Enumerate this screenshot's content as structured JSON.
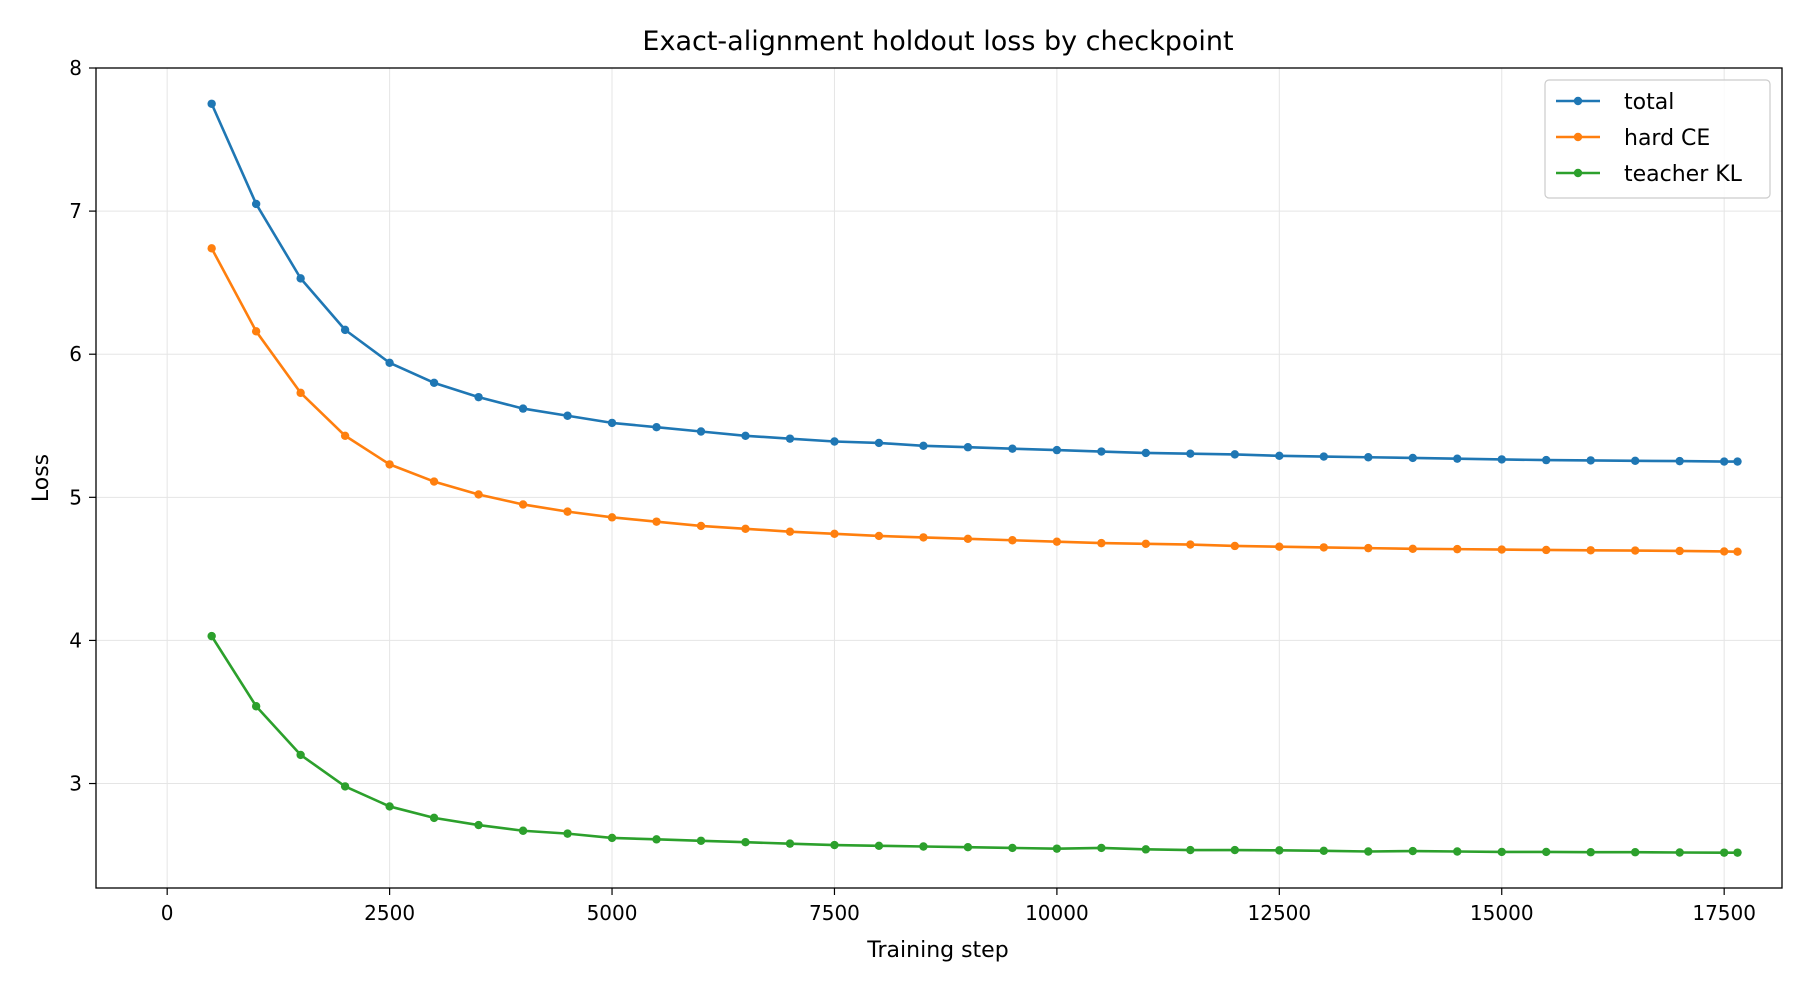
{
  "chart_data": {
    "type": "line",
    "title": "Exact-alignment holdout loss by checkpoint",
    "xlabel": "Training step",
    "ylabel": "Loss",
    "xlim": [
      -800,
      18150
    ],
    "ylim": [
      2.27,
      8.0
    ],
    "xticks": [
      0,
      2500,
      5000,
      7500,
      10000,
      12500,
      15000,
      17500
    ],
    "yticks": [
      3,
      4,
      5,
      6,
      7,
      8
    ],
    "grid": true,
    "legend_position": "upper-right",
    "x": [
      500,
      1000,
      1500,
      2000,
      2500,
      3000,
      3500,
      4000,
      4500,
      5000,
      5500,
      6000,
      6500,
      7000,
      7500,
      8000,
      8500,
      9000,
      9500,
      10000,
      10500,
      11000,
      11500,
      12000,
      12500,
      13000,
      13500,
      14000,
      14500,
      15000,
      15500,
      16000,
      16500,
      17000,
      17500,
      17650
    ],
    "series": [
      {
        "name": "total",
        "color": "#1f77b4",
        "values": [
          7.75,
          7.05,
          6.53,
          6.17,
          5.94,
          5.8,
          5.7,
          5.62,
          5.57,
          5.52,
          5.49,
          5.46,
          5.43,
          5.41,
          5.39,
          5.38,
          5.36,
          5.35,
          5.34,
          5.33,
          5.32,
          5.31,
          5.305,
          5.3,
          5.29,
          5.285,
          5.28,
          5.275,
          5.27,
          5.265,
          5.26,
          5.258,
          5.255,
          5.253,
          5.25,
          5.25
        ]
      },
      {
        "name": "hard CE",
        "color": "#ff7f0e",
        "values": [
          6.74,
          6.16,
          5.73,
          5.43,
          5.23,
          5.11,
          5.02,
          4.95,
          4.9,
          4.86,
          4.83,
          4.8,
          4.78,
          4.76,
          4.745,
          4.73,
          4.72,
          4.71,
          4.7,
          4.69,
          4.68,
          4.675,
          4.67,
          4.66,
          4.655,
          4.65,
          4.645,
          4.64,
          4.638,
          4.635,
          4.632,
          4.63,
          4.628,
          4.625,
          4.622,
          4.62
        ]
      },
      {
        "name": "teacher KL",
        "color": "#2ca02c",
        "values": [
          4.03,
          3.54,
          3.2,
          2.98,
          2.84,
          2.76,
          2.71,
          2.67,
          2.65,
          2.62,
          2.61,
          2.6,
          2.59,
          2.58,
          2.57,
          2.565,
          2.56,
          2.555,
          2.55,
          2.545,
          2.55,
          2.54,
          2.535,
          2.535,
          2.533,
          2.53,
          2.525,
          2.528,
          2.525,
          2.522,
          2.522,
          2.52,
          2.52,
          2.518,
          2.517,
          2.517
        ]
      }
    ]
  }
}
